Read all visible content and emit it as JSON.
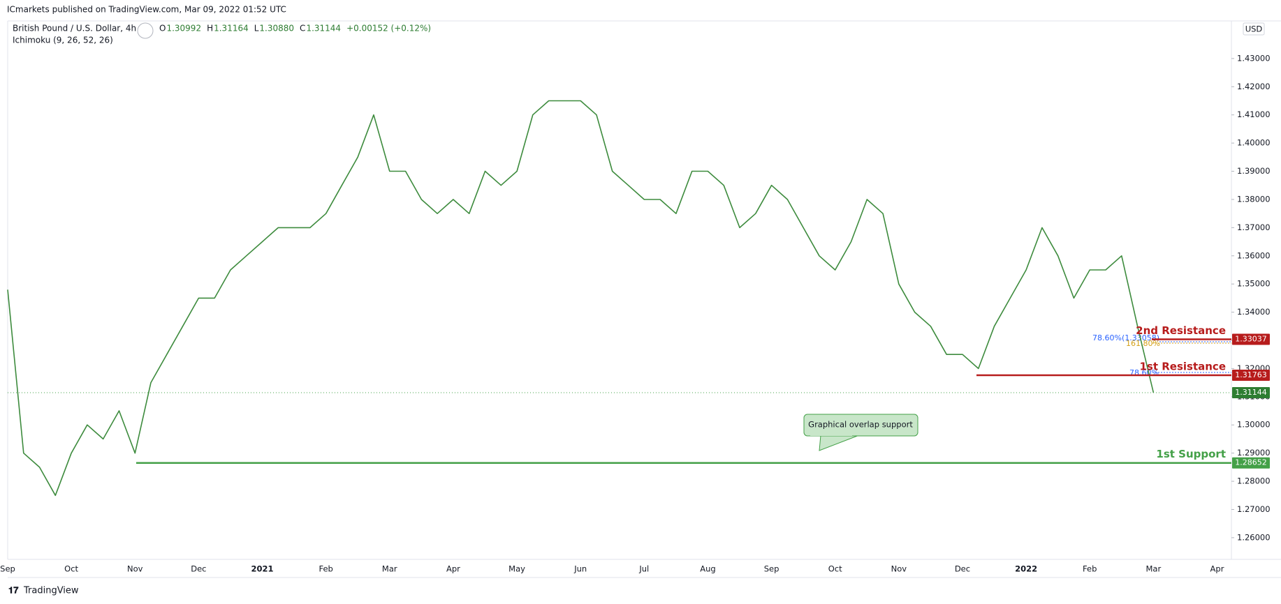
{
  "header": "ICmarkets published on TradingView.com, Mar 09, 2022 01:52 UTC",
  "symbol": "British Pound / U.S. Dollar, 4h",
  "indicator": "Ichimoku (9, 26, 52, 26)",
  "ohlc": [
    {
      "key": "O",
      "text": "1.30992"
    },
    {
      "key": "H",
      "text": "1.31164"
    },
    {
      "key": "L",
      "text": "1.30880"
    },
    {
      "key": "C",
      "text": "1.31144"
    }
  ],
  "change": "+0.00152 (+0.12%)",
  "currency": "USD",
  "footer": "TradingView",
  "annotation": "Graphical overlap support",
  "fib_labels": [
    "78.60%(1.33058)",
    "161.80%",
    "78.60%"
  ],
  "chart_data": {
    "type": "line",
    "categories": [
      "Sep",
      null,
      null,
      null,
      "Oct",
      null,
      null,
      null,
      "Nov",
      null,
      null,
      null,
      "Dec",
      null,
      null,
      null,
      "2021",
      null,
      null,
      null,
      "Feb",
      null,
      null,
      null,
      "Mar",
      null,
      null,
      null,
      "Apr",
      null,
      null,
      null,
      "May",
      null,
      null,
      null,
      "Jun",
      null,
      null,
      null,
      "Jul",
      null,
      null,
      null,
      "Aug",
      null,
      null,
      null,
      "Sep",
      null,
      null,
      null,
      "Oct",
      null,
      null,
      null,
      "Nov",
      null,
      null,
      null,
      "Dec",
      null,
      null,
      null,
      "2022",
      null,
      null,
      null,
      "Feb",
      null,
      null,
      null,
      "Mar",
      null,
      null,
      null,
      "Apr"
    ],
    "series": [
      {
        "name": "GBPUSD",
        "color": "#3d8b3d",
        "values": [
          1.348,
          1.29,
          1.285,
          1.275,
          1.29,
          1.3,
          1.295,
          1.305,
          1.29,
          1.315,
          1.325,
          1.335,
          1.345,
          1.345,
          1.355,
          1.36,
          1.365,
          1.37,
          1.37,
          1.37,
          1.375,
          1.385,
          1.395,
          1.41,
          1.39,
          1.39,
          1.38,
          1.375,
          1.38,
          1.375,
          1.39,
          1.385,
          1.39,
          1.41,
          1.415,
          1.415,
          1.415,
          1.41,
          1.39,
          1.385,
          1.38,
          1.38,
          1.375,
          1.39,
          1.39,
          1.385,
          1.37,
          1.375,
          1.385,
          1.38,
          1.37,
          1.36,
          1.355,
          1.365,
          1.38,
          1.375,
          1.35,
          1.34,
          1.335,
          1.325,
          1.325,
          1.32,
          1.335,
          1.345,
          1.355,
          1.37,
          1.36,
          1.345,
          1.355,
          1.355,
          1.36,
          1.335,
          1.31144,
          null,
          null,
          null,
          null
        ]
      }
    ],
    "ylim": [
      1.2523,
      1.4421
    ],
    "yticks": [
      {
        "value": 1.26,
        "label": "1.26000"
      },
      {
        "value": 1.27,
        "label": "1.27000"
      },
      {
        "value": 1.28,
        "label": "1.28000"
      },
      {
        "value": 1.29,
        "label": "1.29000"
      },
      {
        "value": 1.3,
        "label": "1.30000"
      },
      {
        "value": 1.31,
        "label": "1.31000"
      },
      {
        "value": 1.32,
        "label": "1.32000"
      },
      {
        "value": 1.33,
        "label": "1.33000"
      },
      {
        "value": 1.34,
        "label": "1.34000"
      },
      {
        "value": 1.35,
        "label": "1.35000"
      },
      {
        "value": 1.36,
        "label": "1.36000"
      },
      {
        "value": 1.37,
        "label": "1.37000"
      },
      {
        "value": 1.38,
        "label": "1.38000"
      },
      {
        "value": 1.39,
        "label": "1.39000"
      },
      {
        "value": 1.4,
        "label": "1.40000"
      },
      {
        "value": 1.41,
        "label": "1.41000"
      },
      {
        "value": 1.42,
        "label": "1.42000"
      },
      {
        "value": 1.43,
        "label": "1.43000"
      }
    ],
    "grid": false,
    "last_price": 1.31144,
    "levels": [
      {
        "name": "2nd Resistance",
        "value": 1.33037,
        "color": "#b71c1c"
      },
      {
        "name": "1st Resistance",
        "value": 1.31763,
        "color": "#b71c1c"
      },
      {
        "name": "1st Support",
        "value": 1.28652,
        "color": "#43a047"
      }
    ]
  }
}
